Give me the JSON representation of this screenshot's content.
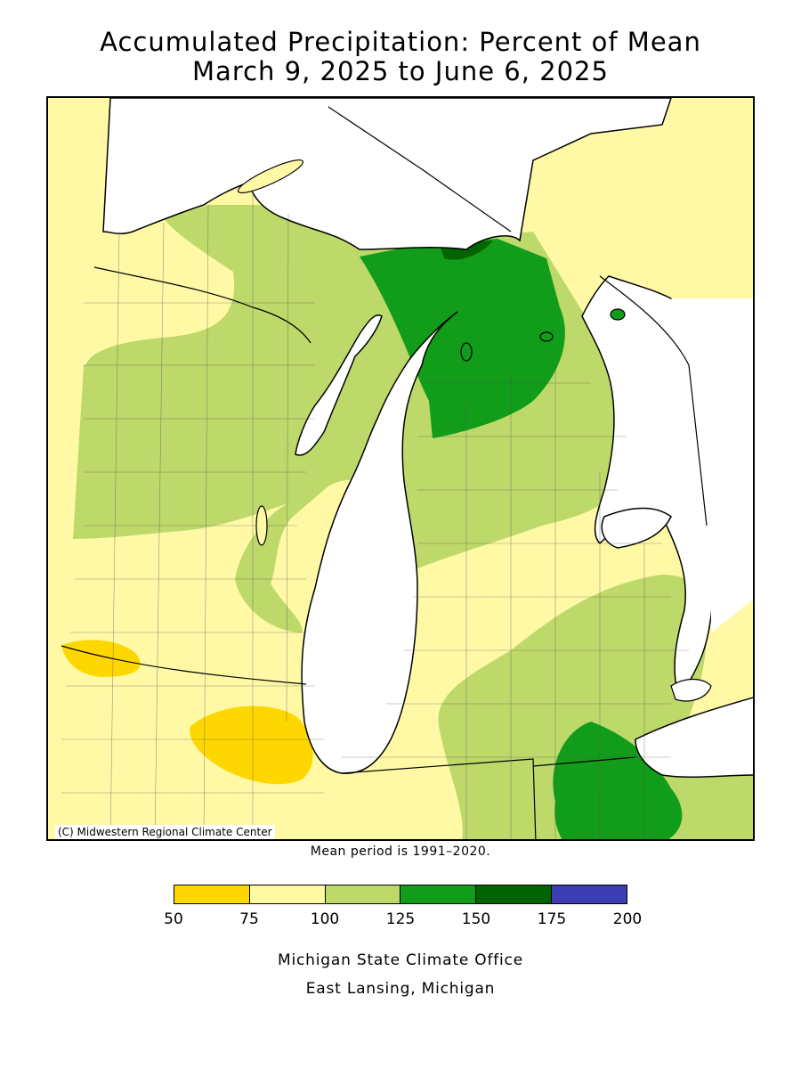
{
  "title": {
    "line1": "Accumulated Precipitation: Percent of Mean",
    "line2": "March 9, 2025 to June 6, 2025"
  },
  "map": {
    "copyright": "(C) Midwestern Regional Climate Center",
    "mean_note": "Mean period is 1991–2020.",
    "land_background_color": "#fff9a6",
    "water_color": "#ffffff"
  },
  "legend": {
    "bins": [
      {
        "min": 50,
        "max": 75,
        "color": "#ffd700"
      },
      {
        "min": 75,
        "max": 100,
        "color": "#fff9a6"
      },
      {
        "min": 100,
        "max": 125,
        "color": "#bdd96a"
      },
      {
        "min": 125,
        "max": 150,
        "color": "#119c19"
      },
      {
        "min": 150,
        "max": 175,
        "color": "#016400"
      },
      {
        "min": 175,
        "max": 200,
        "color": "#3c3cb4"
      }
    ],
    "ticks": [
      "50",
      "75",
      "100",
      "125",
      "150",
      "175",
      "200"
    ]
  },
  "footer": {
    "line1": "Michigan State Climate Office",
    "line2": "East Lansing, Michigan"
  }
}
